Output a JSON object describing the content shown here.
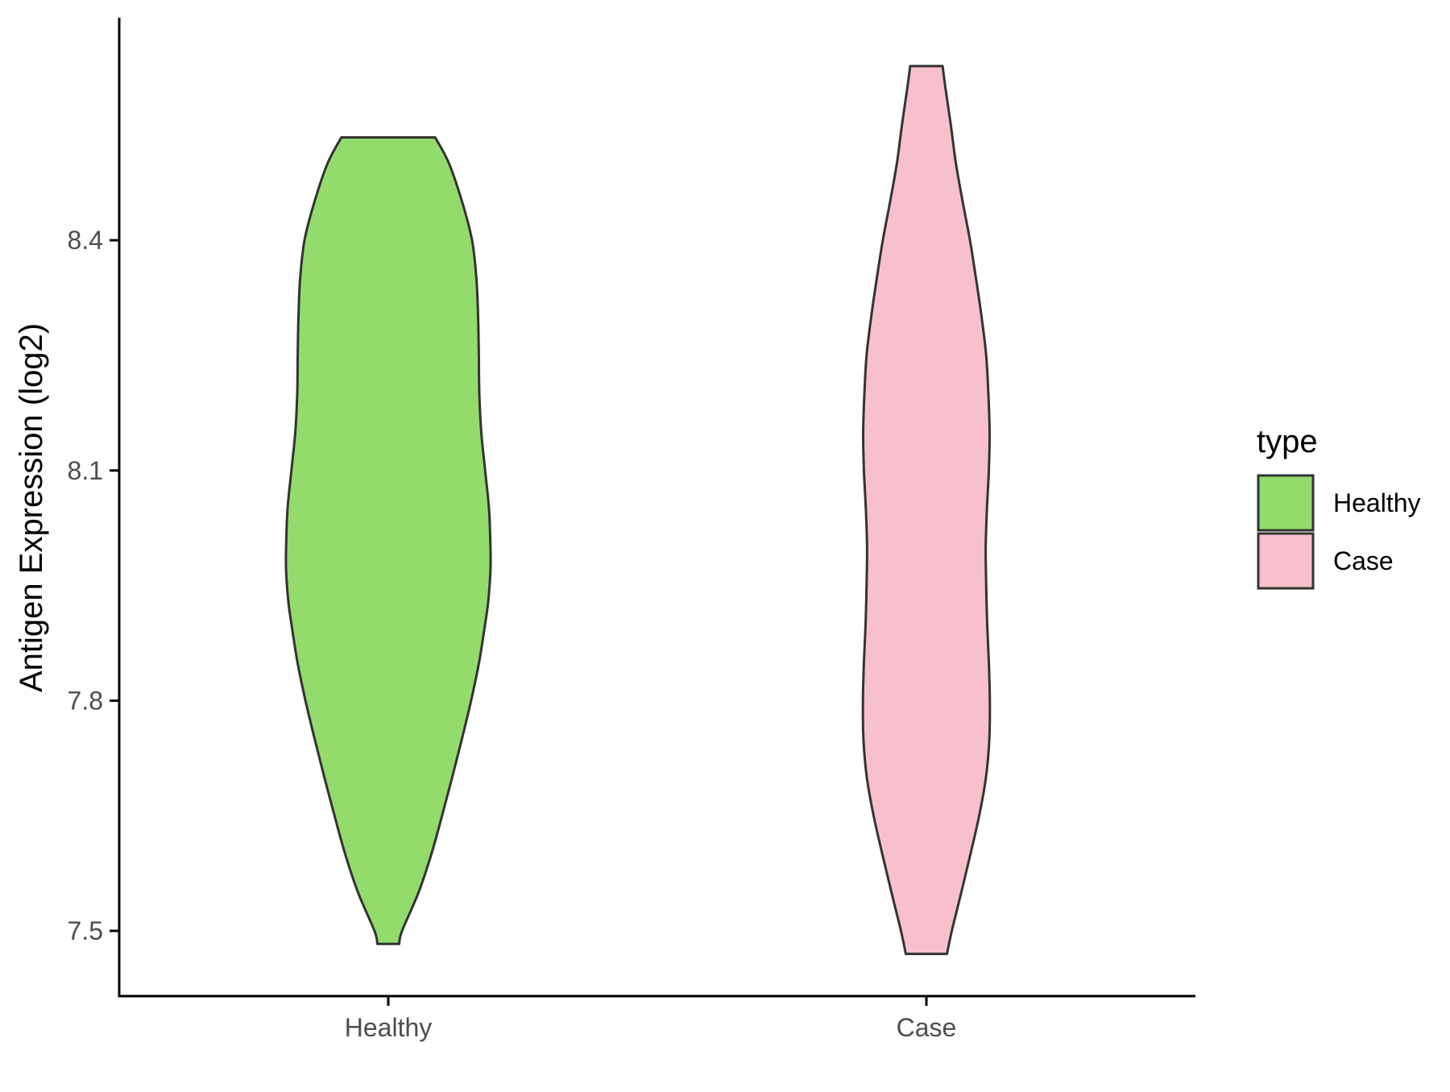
{
  "chart_data": {
    "type": "violin",
    "title": "",
    "xlabel": "",
    "ylabel": "Antigen Expression (log2)",
    "categories": [
      "Healthy",
      "Case"
    ],
    "ylim": [
      7.415,
      8.69
    ],
    "yticks": [
      7.5,
      7.8,
      8.1,
      8.4
    ],
    "ytick_labels": [
      "7.5",
      "7.8",
      "8.1",
      "8.4"
    ],
    "grid": false,
    "legend": {
      "title": "type",
      "position": "right",
      "entries": [
        {
          "label": "Healthy",
          "color": "#93dc6b"
        },
        {
          "label": "Case",
          "color": "#f8c0cc"
        }
      ]
    },
    "series": [
      {
        "category": "Healthy",
        "color": "#93dc6b",
        "min": 7.483,
        "max": 8.534,
        "density_profile": [
          [
            8.534,
            0.194
          ],
          [
            8.5,
            0.251
          ],
          [
            8.45,
            0.305
          ],
          [
            8.4,
            0.346
          ],
          [
            8.35,
            0.364
          ],
          [
            8.3,
            0.371
          ],
          [
            8.25,
            0.374
          ],
          [
            8.2,
            0.376
          ],
          [
            8.15,
            0.384
          ],
          [
            8.1,
            0.4
          ],
          [
            8.05,
            0.416
          ],
          [
            8.0,
            0.422
          ],
          [
            7.97,
            0.422
          ],
          [
            7.93,
            0.413
          ],
          [
            7.9,
            0.4
          ],
          [
            7.85,
            0.375
          ],
          [
            7.8,
            0.342
          ],
          [
            7.75,
            0.304
          ],
          [
            7.7,
            0.264
          ],
          [
            7.65,
            0.222
          ],
          [
            7.6,
            0.178
          ],
          [
            7.55,
            0.125
          ],
          [
            7.5,
            0.057
          ],
          [
            7.483,
            0.045
          ]
        ]
      },
      {
        "category": "Case",
        "color": "#f8c0cc",
        "min": 7.47,
        "max": 8.627,
        "density_profile": [
          [
            8.627,
            0.067
          ],
          [
            8.6,
            0.078
          ],
          [
            8.55,
            0.101
          ],
          [
            8.5,
            0.122
          ],
          [
            8.45,
            0.15
          ],
          [
            8.4,
            0.18
          ],
          [
            8.35,
            0.205
          ],
          [
            8.3,
            0.228
          ],
          [
            8.25,
            0.247
          ],
          [
            8.2,
            0.256
          ],
          [
            8.15,
            0.261
          ],
          [
            8.1,
            0.258
          ],
          [
            8.05,
            0.25
          ],
          [
            8.0,
            0.245
          ],
          [
            7.95,
            0.247
          ],
          [
            7.9,
            0.251
          ],
          [
            7.85,
            0.258
          ],
          [
            7.8,
            0.262
          ],
          [
            7.75,
            0.26
          ],
          [
            7.7,
            0.246
          ],
          [
            7.65,
            0.218
          ],
          [
            7.6,
            0.182
          ],
          [
            7.55,
            0.144
          ],
          [
            7.5,
            0.105
          ],
          [
            7.47,
            0.085
          ]
        ]
      }
    ]
  }
}
